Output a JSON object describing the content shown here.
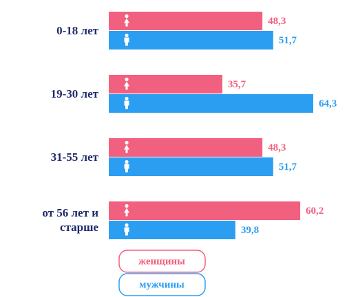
{
  "chart_data": {
    "type": "bar",
    "orientation": "horizontal",
    "categories": [
      "0-18 лет",
      "19-30 лет",
      "31-55 лет",
      "от 56 лет и старше"
    ],
    "series": [
      {
        "name": "женщины",
        "color": "#f2607f",
        "values": [
          48.3,
          35.7,
          48.3,
          60.2
        ],
        "value_labels": [
          "48,3",
          "35,7",
          "48,3",
          "60,2"
        ]
      },
      {
        "name": "мужчины",
        "color": "#2b9ef2",
        "values": [
          51.7,
          64.3,
          51.7,
          39.8
        ],
        "value_labels": [
          "51,7",
          "64,3",
          "51,7",
          "39,8"
        ]
      }
    ]
  }
}
